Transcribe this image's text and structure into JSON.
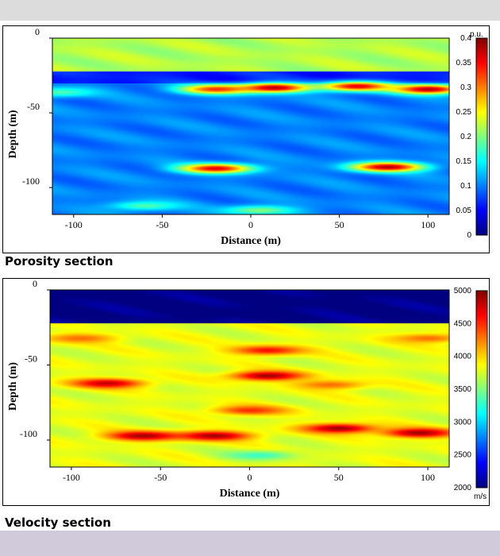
{
  "page": {
    "caption_porosity": "Porosity section",
    "caption_velocity": "Velocity section"
  },
  "chart_data": [
    {
      "type": "heatmap",
      "name": "porosity",
      "title": "Porosity section",
      "xlabel": "Distance (m)",
      "ylabel": "Depth (m)",
      "xlim": [
        -112,
        112
      ],
      "ylim": [
        -118,
        0
      ],
      "xticks": [
        -100,
        -50,
        0,
        50,
        100
      ],
      "xtick_labels": [
        "-100",
        "-50",
        "0",
        "50",
        "100"
      ],
      "yticks": [
        0,
        -50,
        -100
      ],
      "ytick_labels": [
        "0",
        "-50",
        "-100"
      ],
      "colorbar": {
        "min": 0,
        "max": 0.4,
        "unit": "p.u.",
        "ticks": [
          0,
          0.05,
          0.1,
          0.15,
          0.2,
          0.25,
          0.3,
          0.35,
          0.4
        ],
        "tick_labels": [
          "0",
          "0.05",
          "0.1",
          "0.15",
          "0.2",
          "0.25",
          "0.3",
          "0.35",
          "0.4"
        ]
      },
      "layers": [
        {
          "top": 0,
          "bottom": -22,
          "value": 0.22
        },
        {
          "top": -22,
          "bottom": -30,
          "value": 0.06
        },
        {
          "top": -30,
          "bottom": -118,
          "value": 0.1
        }
      ],
      "anomalies": [
        {
          "x": -108,
          "depth": -36,
          "value": 0.18
        },
        {
          "x": -20,
          "depth": -34,
          "value": 0.33
        },
        {
          "x": 13,
          "depth": -33,
          "value": 0.38
        },
        {
          "x": 60,
          "depth": -32,
          "value": 0.36
        },
        {
          "x": 100,
          "depth": -34,
          "value": 0.38
        },
        {
          "x": -20,
          "depth": -87,
          "value": 0.36
        },
        {
          "x": 77,
          "depth": -86,
          "value": 0.38
        },
        {
          "x": -60,
          "depth": -112,
          "value": 0.18
        },
        {
          "x": 5,
          "depth": -115,
          "value": 0.2
        }
      ]
    },
    {
      "type": "heatmap",
      "name": "velocity",
      "title": "Velocity section",
      "xlabel": "Distance (m)",
      "ylabel": "Depth (m)",
      "xlim": [
        -112,
        112
      ],
      "ylim": [
        -118,
        0
      ],
      "xticks": [
        -100,
        -50,
        0,
        50,
        100
      ],
      "xtick_labels": [
        "-100",
        "-50",
        "0",
        "50",
        "100"
      ],
      "yticks": [
        0,
        -50,
        -100
      ],
      "ytick_labels": [
        "0",
        "-50",
        "-100"
      ],
      "colorbar": {
        "min": 2000,
        "max": 5000,
        "unit": "m/s",
        "ticks": [
          2000,
          2500,
          3000,
          3500,
          4000,
          4500,
          5000
        ],
        "tick_labels": [
          "2000",
          "2500",
          "3000",
          "3500",
          "4000",
          "4500",
          "5000"
        ]
      },
      "layers": [
        {
          "top": 0,
          "bottom": -22,
          "value": 2000
        },
        {
          "top": -22,
          "bottom": -118,
          "value": 3800
        }
      ],
      "anomalies": [
        {
          "x": -95,
          "depth": -32,
          "value": 4300
        },
        {
          "x": 10,
          "depth": -40,
          "value": 4600
        },
        {
          "x": 100,
          "depth": -32,
          "value": 4300
        },
        {
          "x": -80,
          "depth": -62,
          "value": 4800
        },
        {
          "x": 10,
          "depth": -57,
          "value": 4900
        },
        {
          "x": 45,
          "depth": -63,
          "value": 4300
        },
        {
          "x": -60,
          "depth": -97,
          "value": 4900
        },
        {
          "x": -20,
          "depth": -97,
          "value": 4900
        },
        {
          "x": 50,
          "depth": -92,
          "value": 4900
        },
        {
          "x": 95,
          "depth": -95,
          "value": 4900
        },
        {
          "x": 0,
          "depth": -80,
          "value": 4500
        },
        {
          "x": 5,
          "depth": -110,
          "value": 3300
        }
      ]
    }
  ]
}
